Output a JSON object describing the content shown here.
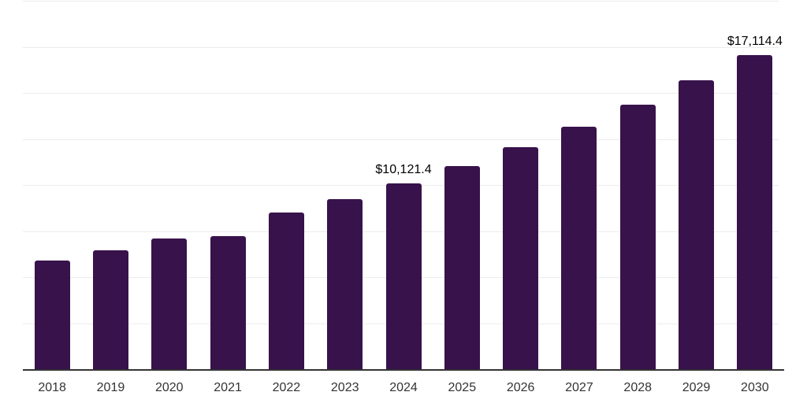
{
  "chart_data": {
    "type": "bar",
    "title": "",
    "xlabel": "",
    "ylabel": "",
    "categories": [
      "2018",
      "2019",
      "2020",
      "2021",
      "2022",
      "2023",
      "2024",
      "2025",
      "2026",
      "2027",
      "2028",
      "2029",
      "2030"
    ],
    "values": [
      5940,
      6480,
      7120,
      7270,
      8550,
      9270,
      10121.4,
      11070,
      12090,
      13200,
      14400,
      15730,
      17114.4
    ],
    "data_labels": {
      "2024": "$10,121.4",
      "2030": "$17,114.4"
    },
    "ylim": [
      0,
      20000
    ],
    "gridline_step": 2500,
    "grid": true,
    "legend": "none",
    "y_axis_labels_visible": false,
    "colors": {
      "bar": "#38124B",
      "gridline": "#ECECEC",
      "axis_line": "#333333",
      "tick_label": "#333333",
      "data_label": "#000000",
      "background": "#FFFFFF"
    }
  }
}
